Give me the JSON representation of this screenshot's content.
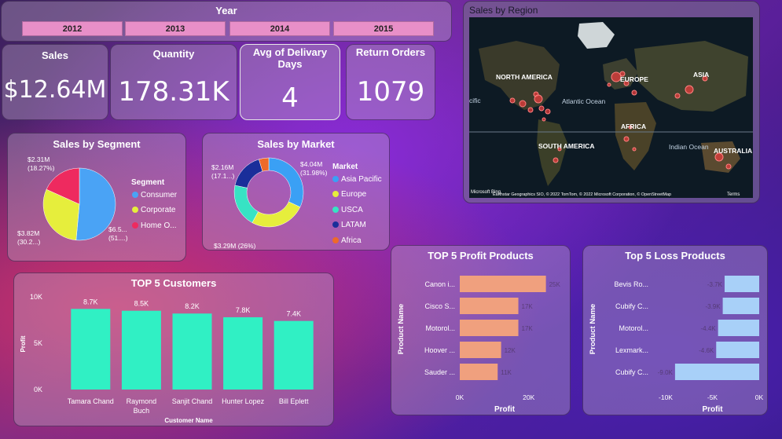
{
  "year_slicer": {
    "title": "Year",
    "options": [
      "2012",
      "2013",
      "2014",
      "2015"
    ]
  },
  "kpis": {
    "sales": {
      "label": "Sales",
      "value": "$12.64M"
    },
    "quantity": {
      "label": "Quantity",
      "value": "178.31K"
    },
    "delivery": {
      "label": "Avg of Delivary Days",
      "value": "4"
    },
    "returns": {
      "label": "Return Orders",
      "value": "1079"
    }
  },
  "map": {
    "title": "Sales by Region",
    "labels": [
      "NORTH AMERICA",
      "EUROPE",
      "ASIA",
      "Atlantic Ocean",
      "AFRICA",
      "SOUTH AMERICA",
      "Indian Ocean",
      "AUSTRALIA",
      "cific"
    ],
    "attribution": "Earthstar Geographics SIO, © 2022 TomTom, © 2022 Microsoft Corporation, © OpenStreetMap",
    "terms": "Terms",
    "logo": "Microsoft Bing"
  },
  "chart_data": [
    {
      "type": "pie",
      "title": "Sales by Segment",
      "legend_title": "Segment",
      "categories": [
        "Consumer",
        "Corporate",
        "Home O..."
      ],
      "values": [
        51.45,
        30.28,
        18.27
      ],
      "data_labels": [
        "$6.5... (51....)",
        "$3.82M (30.2...)",
        "$2.31M (18.27%)"
      ],
      "colors": [
        "#4aa3f5",
        "#e6ee3c",
        "#ee2a5f"
      ]
    },
    {
      "type": "donut",
      "title": "Sales by Market",
      "legend_title": "Market",
      "categories": [
        "Asia Pacific",
        "Europe",
        "USCA",
        "LATAM",
        "Africa"
      ],
      "values": [
        31.98,
        26,
        20.3,
        17.1,
        4.62
      ],
      "data_labels": [
        "$4.04M (31.98%)",
        "$3.29M (26%)",
        "",
        "$2.16M (17.1...)",
        ""
      ],
      "colors": [
        "#3aa0f5",
        "#e6ee3c",
        "#37e3c4",
        "#1a2e9a",
        "#ee6a2a"
      ]
    },
    {
      "type": "bar",
      "title": "TOP 5 Customers",
      "xlabel": "Customer Name",
      "ylabel": "Profit",
      "categories": [
        "Tamara Chand",
        "Raymond Buch",
        "Sanjit Chand",
        "Hunter Lopez",
        "Bill Eplett"
      ],
      "values": [
        8700,
        8500,
        8200,
        7800,
        7400
      ],
      "data_labels": [
        "8.7K",
        "8.5K",
        "8.2K",
        "7.8K",
        "7.4K"
      ],
      "yticks": [
        "0K",
        "5K",
        "10K"
      ],
      "ylim": [
        0,
        10000
      ],
      "color": "#30f0c4"
    },
    {
      "type": "bar",
      "orientation": "horizontal",
      "title": "TOP 5 Profit Products",
      "xlabel": "Profit",
      "ylabel": "Product Name",
      "categories": [
        "Canon i...",
        "Cisco S...",
        "Motorol...",
        "Hoover ...",
        "Sauder ..."
      ],
      "values": [
        25000,
        17000,
        17000,
        12000,
        11000
      ],
      "data_labels": [
        "25K",
        "17K",
        "17K",
        "12K",
        "11K"
      ],
      "xticks": [
        "0K",
        "20K"
      ],
      "xlim": [
        0,
        26000
      ],
      "color": "#f0a07e"
    },
    {
      "type": "bar",
      "orientation": "horizontal",
      "title": "Top 5 Loss Products",
      "xlabel": "Profit",
      "ylabel": "Product Name",
      "categories": [
        "Bevis Ro...",
        "Cubify C...",
        "Motorol...",
        "Lexmark...",
        "Cubify C..."
      ],
      "values": [
        -3700,
        -3900,
        -4400,
        -4600,
        -9000
      ],
      "data_labels": [
        "-3.7K",
        "-3.9K",
        "-4.4K",
        "-4.6K",
        "-9.0K"
      ],
      "xticks": [
        "-10K",
        "-5K",
        "0K"
      ],
      "xlim": [
        -10000,
        0
      ],
      "color": "#a8d0f8"
    }
  ]
}
